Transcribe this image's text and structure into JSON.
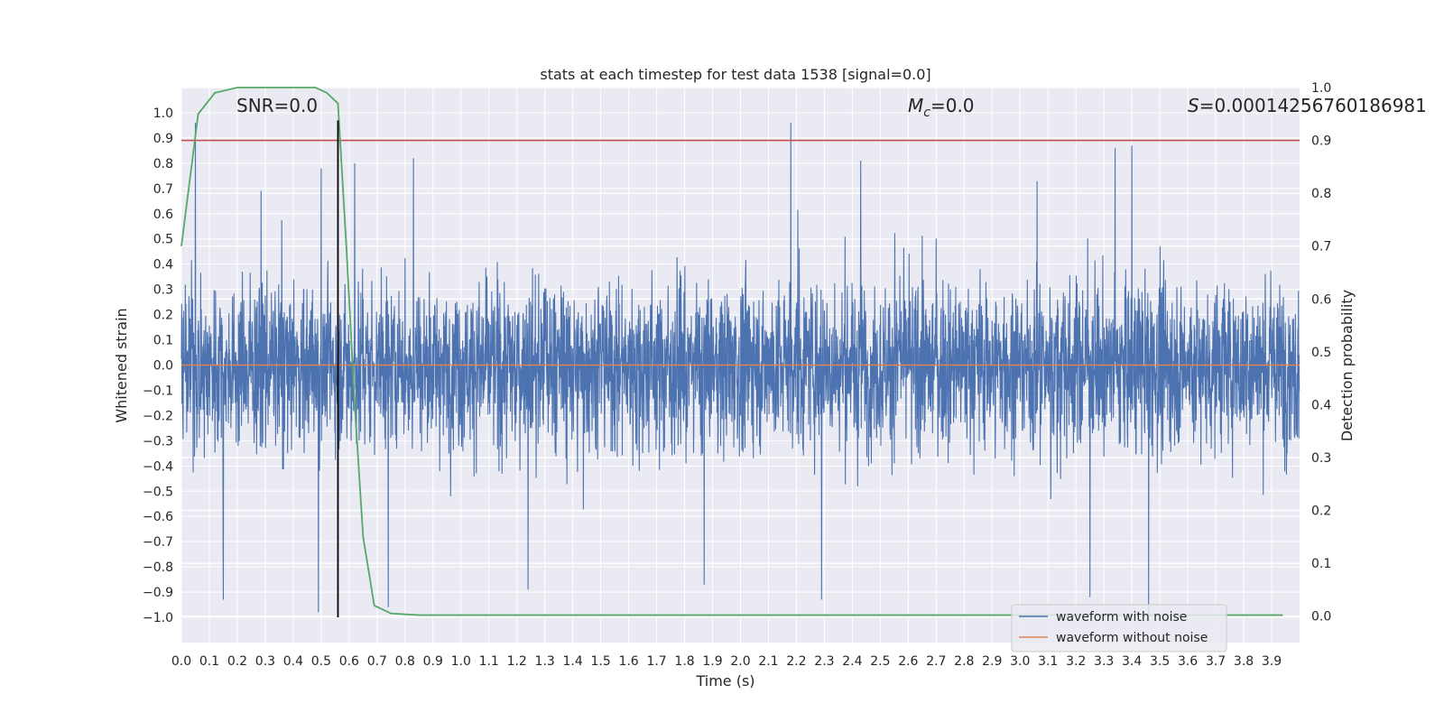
{
  "chart_data": {
    "type": "line",
    "title": "stats at each timestep for test data 1538 [signal=0.0]",
    "xlabel": "Time (s)",
    "ylabel": "Whitened strain",
    "y2label": "Detection probability",
    "xlim": [
      0.0,
      4.0
    ],
    "ylim": [
      -1.1,
      1.1
    ],
    "y2lim": [
      -0.05,
      1.0
    ],
    "grid": true,
    "legend_position": "bottom-right",
    "x_ticks": [
      "0.0",
      "0.1",
      "0.2",
      "0.3",
      "0.4",
      "0.5",
      "0.6",
      "0.7",
      "0.8",
      "0.9",
      "1.0",
      "1.1",
      "1.2",
      "1.3",
      "1.4",
      "1.5",
      "1.6",
      "1.7",
      "1.8",
      "1.9",
      "2.0",
      "2.1",
      "2.2",
      "2.3",
      "2.4",
      "2.5",
      "2.6",
      "2.7",
      "2.8",
      "2.9",
      "3.0",
      "3.1",
      "3.2",
      "3.3",
      "3.4",
      "3.5",
      "3.6",
      "3.7",
      "3.8",
      "3.9"
    ],
    "y_ticks": [
      "1.0",
      "0.9",
      "0.8",
      "0.7",
      "0.6",
      "0.5",
      "0.4",
      "0.3",
      "0.2",
      "0.1",
      "0.0",
      "−0.1",
      "−0.2",
      "−0.3",
      "−0.4",
      "−0.5",
      "−0.6",
      "−0.7",
      "−0.8",
      "−0.9",
      "−1.0"
    ],
    "y2_ticks": [
      "1.0",
      "0.9",
      "0.8",
      "0.7",
      "0.6",
      "0.5",
      "0.4",
      "0.3",
      "0.2",
      "0.1",
      "0.0"
    ],
    "annotations": {
      "snr": "SNR=0.0",
      "mc_symbol": "M",
      "mc_sub": "c",
      "mc_value": "=0.0",
      "s_symbol": "S",
      "s_value": "=0.00014256760186981"
    },
    "series": [
      {
        "name": "waveform with noise",
        "color": "#4c72b0",
        "description_values": "dense noise within approximately ±1.0",
        "peaks_pos": [
          [
            0.05,
            0.96
          ],
          [
            0.5,
            0.78
          ],
          [
            0.62,
            0.8
          ],
          [
            0.83,
            0.82
          ],
          [
            2.18,
            0.96
          ],
          [
            2.43,
            0.81
          ],
          [
            3.34,
            0.86
          ],
          [
            3.4,
            0.87
          ]
        ],
        "peaks_neg": [
          [
            0.15,
            -0.93
          ],
          [
            0.49,
            -0.98
          ],
          [
            0.74,
            -0.96
          ],
          [
            1.24,
            -0.89
          ],
          [
            1.87,
            -0.87
          ],
          [
            2.29,
            -0.93
          ],
          [
            3.25,
            -0.92
          ],
          [
            3.46,
            -0.99
          ]
        ]
      },
      {
        "name": "waveform without noise",
        "color": "#dd8452",
        "values_const": 0.0
      },
      {
        "name": "detection probability",
        "color": "#55a868",
        "axis": "right",
        "x": [
          0.0,
          0.06,
          0.12,
          0.2,
          0.3,
          0.4,
          0.48,
          0.52,
          0.56,
          0.59,
          0.62,
          0.65,
          0.69,
          0.75,
          0.85,
          1.0,
          2.0,
          3.0,
          3.94
        ],
        "y": [
          0.7,
          0.95,
          0.99,
          1.0,
          1.0,
          1.0,
          1.0,
          0.99,
          0.97,
          0.7,
          0.4,
          0.15,
          0.02,
          0.005,
          0.002,
          0.002,
          0.002,
          0.002,
          0.002
        ]
      }
    ],
    "threshold": {
      "value": 0.9,
      "axis": "right",
      "color": "#c44e52"
    },
    "marker": {
      "x": 0.56,
      "y": [
        -1.0,
        0.97
      ],
      "color": "#000000"
    },
    "legend": [
      "waveform with noise",
      "waveform without noise"
    ]
  }
}
